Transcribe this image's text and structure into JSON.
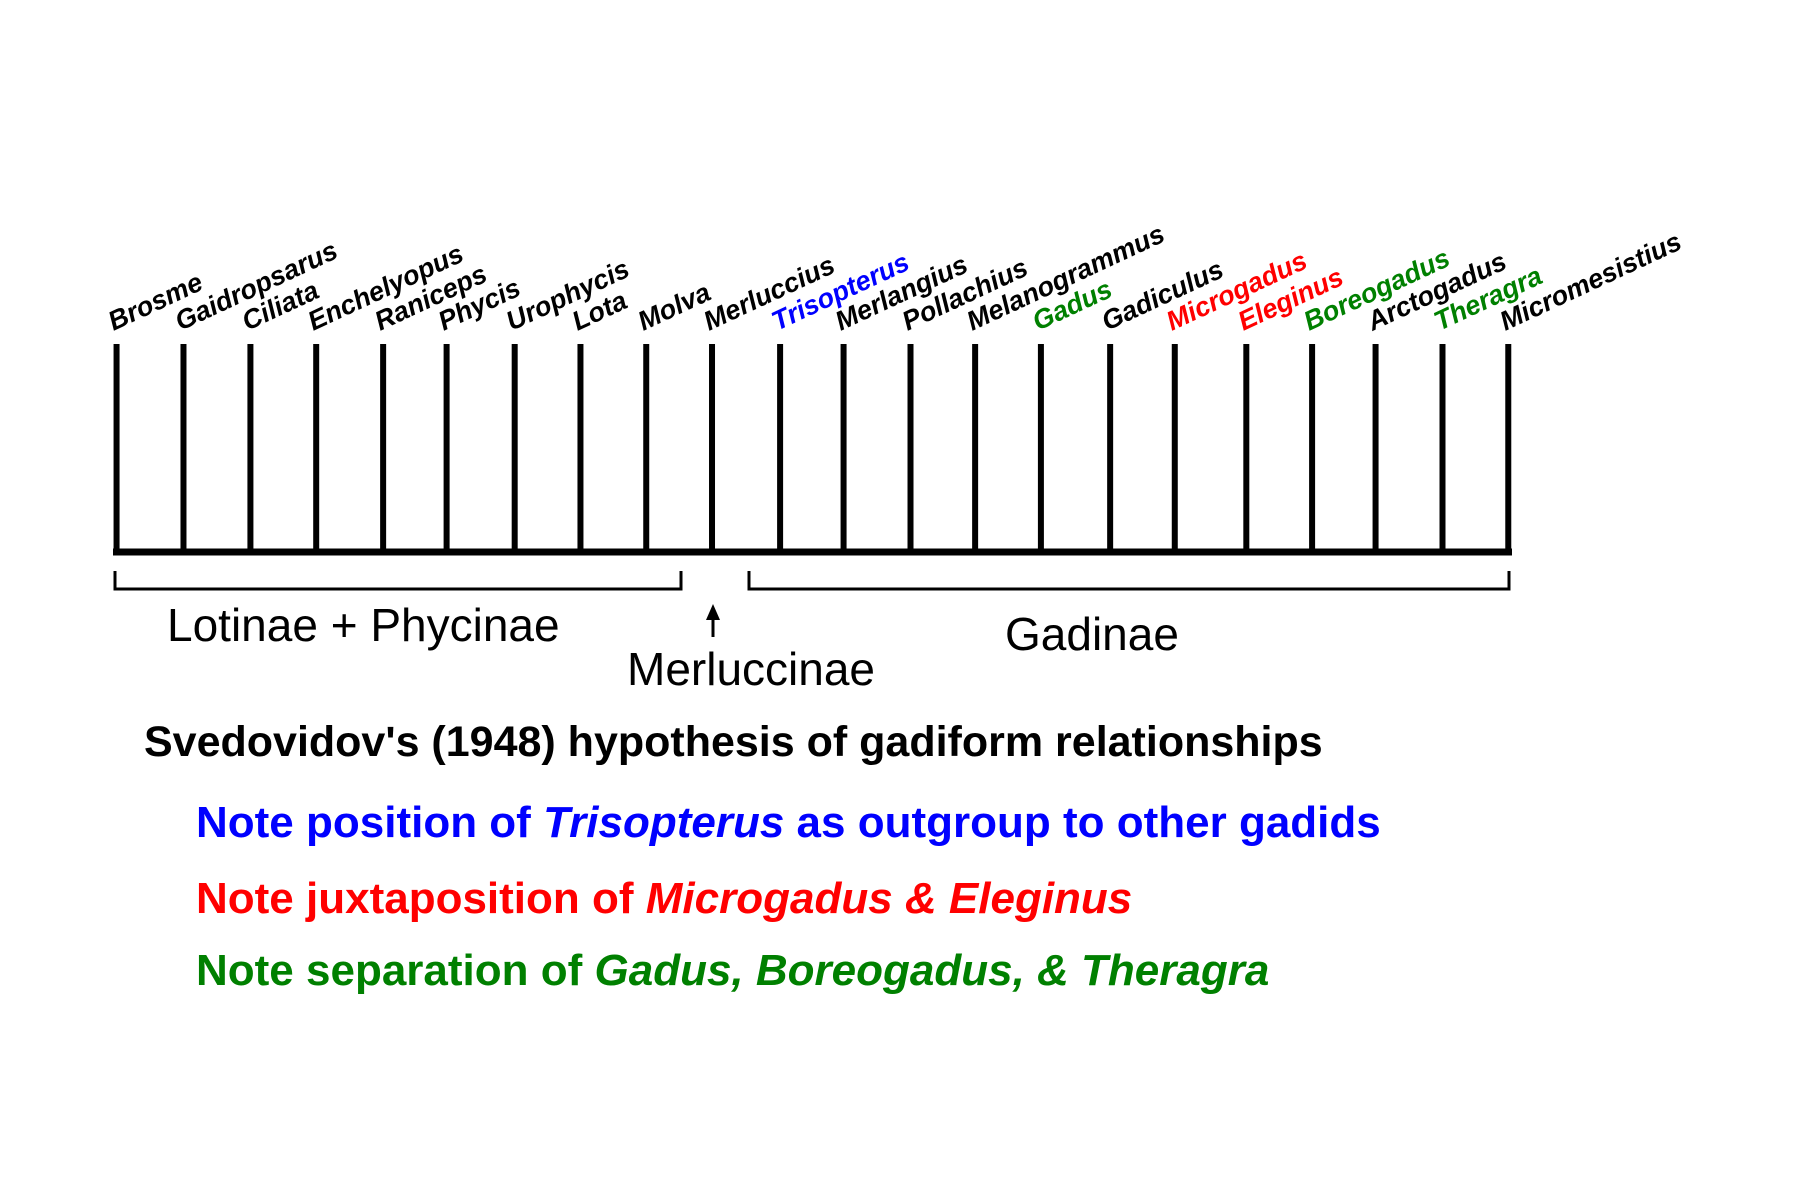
{
  "taxa": [
    {
      "name": "Brosme",
      "color": "#000000"
    },
    {
      "name": "Gaidropsarus",
      "color": "#000000"
    },
    {
      "name": "Ciliata",
      "color": "#000000"
    },
    {
      "name": "Enchelyopus",
      "color": "#000000"
    },
    {
      "name": "Raniceps",
      "color": "#000000"
    },
    {
      "name": "Phycis",
      "color": "#000000"
    },
    {
      "name": "Urophycis",
      "color": "#000000"
    },
    {
      "name": "Lota",
      "color": "#000000"
    },
    {
      "name": "Molva",
      "color": "#000000"
    },
    {
      "name": "Merluccius",
      "color": "#000000"
    },
    {
      "name": "Trisopterus",
      "color": "#0000ff"
    },
    {
      "name": "Merlangius",
      "color": "#000000"
    },
    {
      "name": "Pollachius",
      "color": "#000000"
    },
    {
      "name": "Melanogrammus",
      "color": "#000000"
    },
    {
      "name": "Gadus",
      "color": "#008000"
    },
    {
      "name": "Gadiculus",
      "color": "#000000"
    },
    {
      "name": "Microgadus",
      "color": "#ff0000"
    },
    {
      "name": "Eleginus",
      "color": "#ff0000"
    },
    {
      "name": "Boreogadus",
      "color": "#008000"
    },
    {
      "name": "Arctogadus",
      "color": "#000000"
    },
    {
      "name": "Theragra",
      "color": "#008000"
    },
    {
      "name": "Micromesistius",
      "color": "#000000"
    }
  ],
  "groups": {
    "lotinae": "Lotinae + Phycinae",
    "merluccinae": "Merluccinae",
    "gadinae": "Gadinae"
  },
  "title": "Svedovidov's (1948) hypothesis of gadiform relationships",
  "notes": {
    "blue": {
      "pre": "Note position of ",
      "em": "Trisopterus",
      "post": " as outgroup to other gadids",
      "color": "#0000ff"
    },
    "red": {
      "pre": "Note juxtaposition of ",
      "em": "Microgadus & Eleginus",
      "post": "",
      "color": "#ff0000"
    },
    "green": {
      "pre": "Note separation of ",
      "em": "Gadus, Boreogadus, & Theragra",
      "post": "",
      "color": "#008000"
    }
  }
}
